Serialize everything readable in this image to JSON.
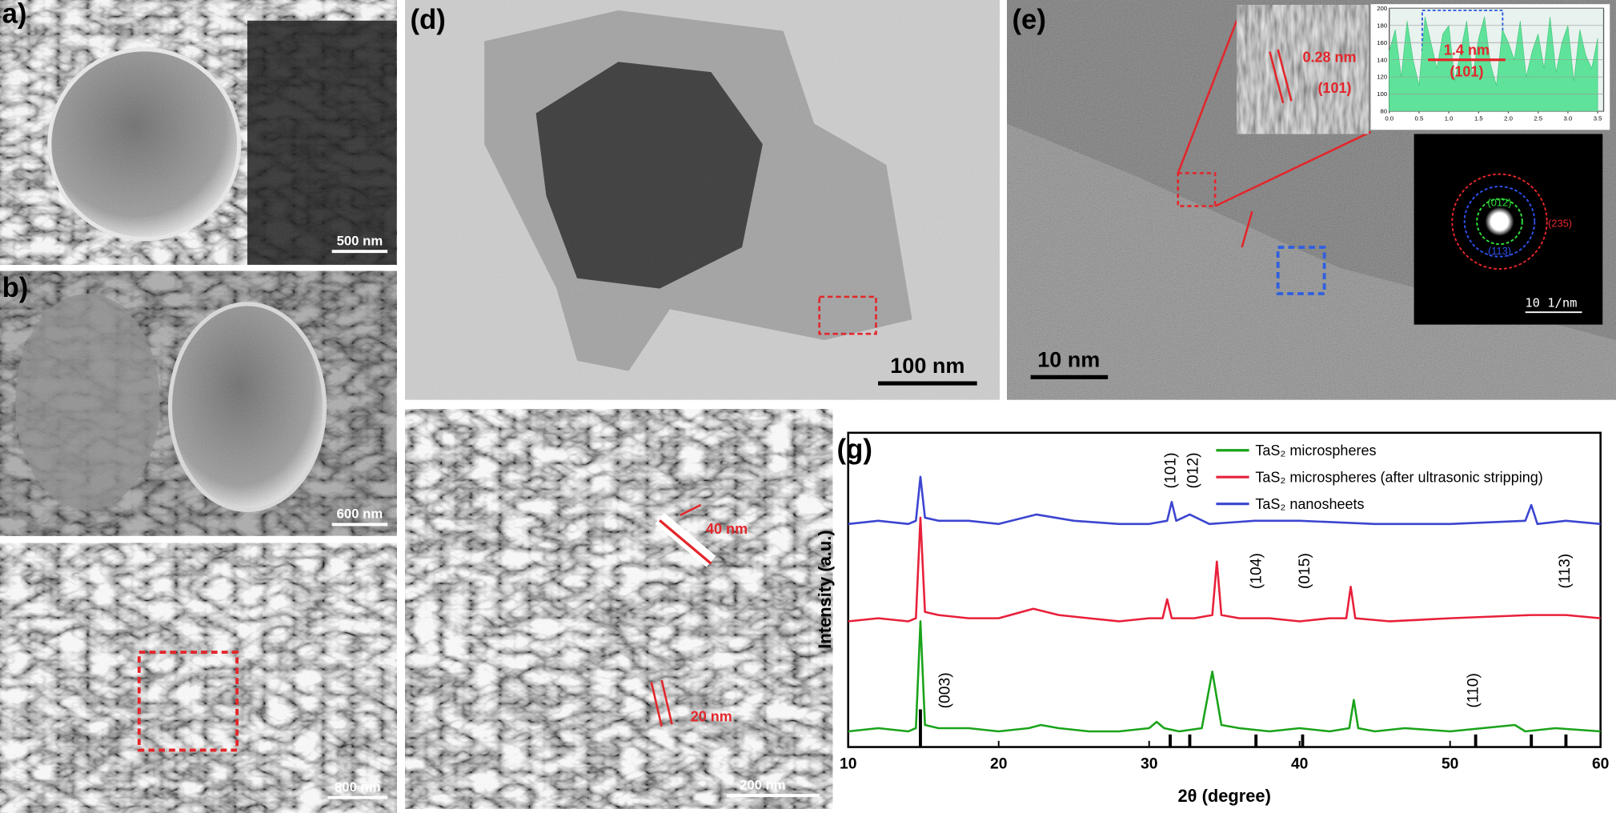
{
  "figure": {
    "panels": {
      "a": {
        "label": "a)",
        "scale": "500 nm"
      },
      "b": {
        "label": "b)",
        "scale": "600 nm"
      },
      "c": {
        "scale": "800 nm"
      },
      "d": {
        "label": "(d)",
        "scale": "100 nm"
      },
      "e": {
        "label": "(e)",
        "scale": "10 nm",
        "lattice": "0.28 nm",
        "lattice_plane": "(101)",
        "profile_spacing": "1.4 nm",
        "profile_plane": "(101)",
        "saed_scale": "10 1/nm",
        "rings": [
          "(012)",
          "(113)",
          "(235)"
        ]
      },
      "f": {
        "scale": "200 nm",
        "thick": "40 nm",
        "thin": "20 nm"
      }
    }
  },
  "chart_data": [
    {
      "type": "line",
      "panel_label": "(g)",
      "xlabel": "2θ (degree)",
      "ylabel": "Intensity (a.u.)",
      "xlim": [
        10,
        60
      ],
      "xticks": [
        10,
        20,
        30,
        40,
        50,
        60
      ],
      "ylim": [
        0,
        100
      ],
      "legend": "top-right",
      "series": [
        {
          "name": "TaS₂ microspheres",
          "color": "#1aa31a",
          "x": [
            10,
            12,
            14,
            14.5,
            14.8,
            15.1,
            16,
            18,
            20,
            22,
            22.8,
            24,
            26,
            28,
            30,
            30.5,
            31,
            32,
            33.5,
            34.2,
            34.8,
            36,
            38,
            40,
            42,
            43.3,
            43.6,
            43.9,
            45,
            47,
            50,
            54.3,
            55,
            57,
            60
          ],
          "values": [
            5,
            6,
            5,
            6,
            40,
            7,
            6,
            6,
            5,
            6,
            7,
            6,
            5,
            5,
            6,
            8,
            6,
            5,
            6,
            24,
            7,
            6,
            5,
            6,
            5,
            6,
            15,
            6,
            5,
            6,
            5,
            7,
            5,
            6,
            5
          ]
        },
        {
          "name": "TaS₂ microspheres (after ultrasonic stripping)",
          "color": "#e8203a",
          "x": [
            10,
            12,
            14,
            14.5,
            14.8,
            15.1,
            16,
            18,
            20,
            22.3,
            24,
            26,
            28,
            30,
            30.9,
            31.2,
            31.5,
            33,
            34.2,
            34.5,
            34.8,
            36,
            38,
            40,
            42,
            43.1,
            43.4,
            43.7,
            46,
            50,
            55.4,
            57.7,
            60
          ],
          "values": [
            40,
            41,
            40,
            41,
            73,
            43,
            42,
            41,
            41,
            44,
            42,
            41,
            40,
            41,
            41,
            47,
            41,
            41,
            42,
            59,
            42,
            41,
            41,
            40,
            41,
            41,
            51,
            41,
            40,
            41,
            42,
            42,
            41
          ]
        },
        {
          "name": "TaS₂ nanosheets",
          "color": "#3b45d0",
          "x": [
            10,
            12,
            14,
            14.5,
            14.8,
            15.1,
            16,
            18,
            20,
            22.5,
            25,
            28,
            30,
            31.2,
            31.5,
            31.8,
            32.7,
            34,
            37,
            40,
            45,
            50,
            55,
            55.4,
            55.8,
            57.7,
            60
          ],
          "values": [
            71,
            72,
            71,
            72,
            86,
            73,
            72,
            72,
            71,
            74,
            72,
            71,
            71,
            72,
            78,
            72,
            74,
            71,
            72,
            72,
            71,
            71,
            72,
            77,
            71,
            72,
            71
          ]
        }
      ],
      "reference": {
        "color": "#000000",
        "x": [
          14.8,
          31.4,
          32.7,
          37.1,
          40.2,
          51.7,
          55.4,
          57.7
        ],
        "values": [
          12,
          4,
          4,
          4,
          4,
          4,
          4,
          4
        ]
      },
      "annotations": [
        {
          "text": "(101)",
          "x": 31.4,
          "y": 88
        },
        {
          "text": "(012)",
          "x": 32.9,
          "y": 88
        },
        {
          "text": "(104)",
          "x": 37.1,
          "y": 56
        },
        {
          "text": "(015)",
          "x": 40.3,
          "y": 56
        },
        {
          "text": "(113)",
          "x": 57.6,
          "y": 56
        },
        {
          "text": "(003)",
          "x": 16.4,
          "y": 18
        },
        {
          "text": "(110)",
          "x": 51.5,
          "y": 18
        }
      ]
    },
    {
      "type": "area",
      "color": "#5fe39a",
      "xlim": [
        0,
        3.6
      ],
      "xticks": [
        {
          "value": 0,
          "label": "0.0"
        },
        0.5,
        {
          "value": 1,
          "label": "1.0"
        },
        1.5,
        {
          "value": 2,
          "label": "2.0"
        },
        2.5,
        {
          "value": 3,
          "label": "3.0"
        },
        3.5
      ],
      "ylim": [
        80,
        200
      ],
      "yticks": [
        80,
        100,
        120,
        140,
        160,
        180,
        200
      ],
      "x": [
        0,
        0.1,
        0.2,
        0.3,
        0.4,
        0.5,
        0.6,
        0.7,
        0.8,
        0.9,
        1,
        1.1,
        1.2,
        1.3,
        1.4,
        1.5,
        1.6,
        1.7,
        1.8,
        1.9,
        2,
        2.1,
        2.2,
        2.3,
        2.4,
        2.5,
        2.6,
        2.7,
        2.8,
        2.9,
        3,
        3.1,
        3.2,
        3.3,
        3.4,
        3.5
      ],
      "values": [
        150,
        175,
        120,
        185,
        140,
        110,
        190,
        160,
        130,
        170,
        180,
        115,
        150,
        185,
        120,
        165,
        190,
        135,
        110,
        175,
        160,
        140,
        185,
        120,
        150,
        170,
        130,
        190,
        125,
        160,
        180,
        115,
        175,
        145,
        130,
        165
      ]
    }
  ]
}
